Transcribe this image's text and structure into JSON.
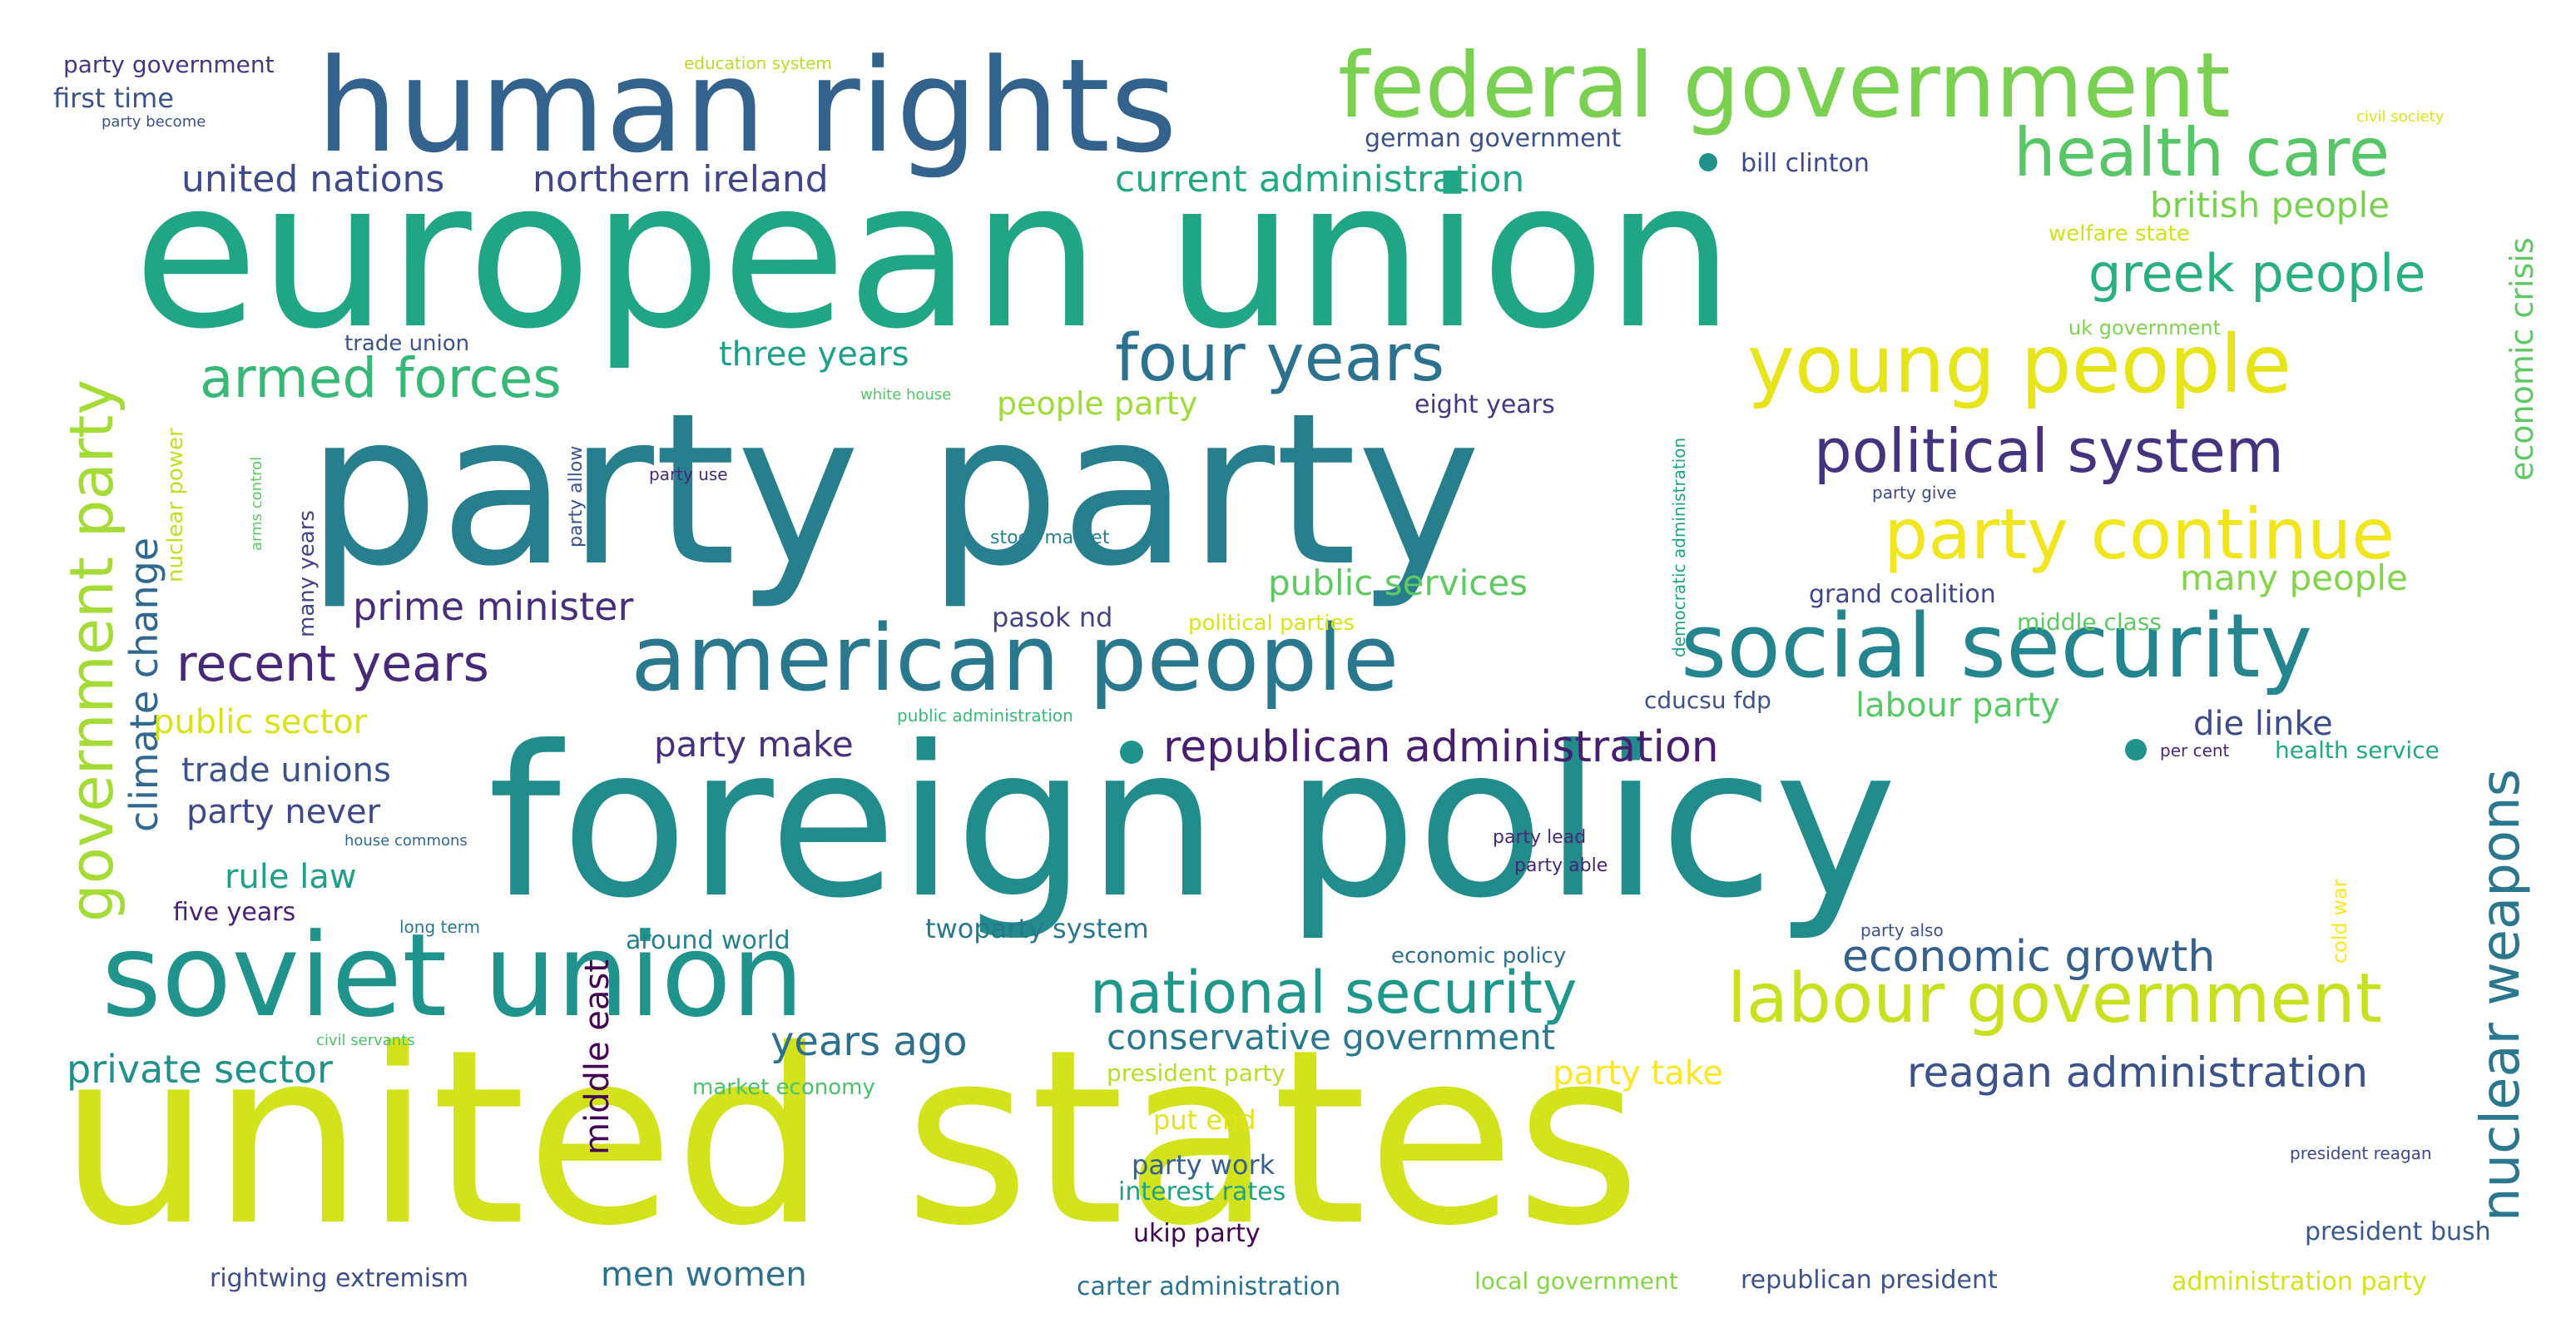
{
  "words": [
    {
      "text": "united states",
      "color": "#d2e21b"
    },
    {
      "text": "european union",
      "color": "#21a685"
    },
    {
      "text": "party party",
      "color": "#277f8e"
    },
    {
      "text": "foreign policy",
      "color": "#228c8d"
    },
    {
      "text": "human rights",
      "color": "#33638d"
    },
    {
      "text": "soviet union",
      "color": "#20938c"
    },
    {
      "text": "federal government",
      "color": "#7ad151"
    },
    {
      "text": "american people",
      "color": "#2a788e"
    },
    {
      "text": "social security",
      "color": "#25858e"
    },
    {
      "text": "young people",
      "color": "#e7e419"
    },
    {
      "text": "labour government",
      "color": "#c8e020"
    },
    {
      "text": "health care",
      "color": "#56c667"
    },
    {
      "text": "party continue",
      "color": "#f1e51d"
    },
    {
      "text": "government party",
      "color": "#a5db36"
    },
    {
      "text": "national security",
      "color": "#1f988b"
    },
    {
      "text": "four years",
      "color": "#2c728e"
    },
    {
      "text": "political system",
      "color": "#46337f"
    },
    {
      "text": "nuclear weapons",
      "color": "#2a778e"
    },
    {
      "text": "armed forces",
      "color": "#37b878"
    },
    {
      "text": "greek people",
      "color": "#2ab07f"
    },
    {
      "text": "recent years",
      "color": "#482979"
    },
    {
      "text": "economic growth",
      "color": "#355f8d"
    },
    {
      "text": "reagan administration",
      "color": "#3b528b"
    },
    {
      "text": "republican administration",
      "color": "#481f70"
    },
    {
      "text": "climate change",
      "color": "#31688e"
    },
    {
      "text": "prime minister",
      "color": "#472d7b"
    },
    {
      "text": "private sector",
      "color": "#21918c"
    },
    {
      "text": "years ago",
      "color": "#2d708e"
    },
    {
      "text": "conservative government",
      "color": "#2a788e"
    },
    {
      "text": "british people",
      "color": "#7ad151"
    },
    {
      "text": "united nations",
      "color": "#3e4a89"
    },
    {
      "text": "northern ireland",
      "color": "#404688"
    },
    {
      "text": "current administration",
      "color": "#22a884"
    },
    {
      "text": "public services",
      "color": "#5ec962"
    },
    {
      "text": "many people",
      "color": "#84d44b"
    },
    {
      "text": "party make",
      "color": "#472f7d"
    },
    {
      "text": "die linke",
      "color": "#3e4c8a"
    },
    {
      "text": "labour party",
      "color": "#58c765"
    },
    {
      "text": "public sector",
      "color": "#d8e219"
    },
    {
      "text": "trade unions",
      "color": "#3b528b"
    },
    {
      "text": "party never",
      "color": "#3e4989"
    },
    {
      "text": "rule law",
      "color": "#1f9e89"
    },
    {
      "text": "middle east",
      "color": "#440154"
    },
    {
      "text": "party take",
      "color": "#fde725"
    },
    {
      "text": "men women",
      "color": "#2d708e"
    },
    {
      "text": "economic crisis",
      "color": "#5ec962"
    },
    {
      "text": "three years",
      "color": "#1fa088"
    },
    {
      "text": "people party",
      "color": "#a0da39"
    },
    {
      "text": "first time",
      "color": "#3b528b"
    },
    {
      "text": "party government",
      "color": "#453781"
    },
    {
      "text": "german government",
      "color": "#3b528b"
    },
    {
      "text": "bill clinton",
      "color": "#3e4a89"
    },
    {
      "text": "twoparty system",
      "color": "#2a788e"
    },
    {
      "text": "grand coalition",
      "color": "#3f4788"
    },
    {
      "text": "pasok nd",
      "color": "#414487"
    },
    {
      "text": "eight years",
      "color": "#443a83"
    },
    {
      "text": "five years",
      "color": "#482173"
    },
    {
      "text": "around world",
      "color": "#26818e"
    },
    {
      "text": "middle class",
      "color": "#5ec962"
    },
    {
      "text": "health service",
      "color": "#22a884"
    },
    {
      "text": "cducsu fdp",
      "color": "#3b528b"
    },
    {
      "text": "put end",
      "color": "#e2e418"
    },
    {
      "text": "party work",
      "color": "#355f8d"
    },
    {
      "text": "interest rates",
      "color": "#1fa188"
    },
    {
      "text": "ukip party",
      "color": "#440154"
    },
    {
      "text": "president bush",
      "color": "#38598c"
    },
    {
      "text": "president party",
      "color": "#b5de2b"
    },
    {
      "text": "carter administration",
      "color": "#2c718e"
    },
    {
      "text": "local government",
      "color": "#86d549"
    },
    {
      "text": "republican president",
      "color": "#3b528b"
    },
    {
      "text": "administration party",
      "color": "#d5e21a"
    },
    {
      "text": "rightwing extremism",
      "color": "#3d4e8a"
    },
    {
      "text": "economic policy",
      "color": "#2e6e8e"
    },
    {
      "text": "many years",
      "color": "#414487"
    },
    {
      "text": "nuclear power",
      "color": "#c2df23"
    },
    {
      "text": "cold war",
      "color": "#fde725"
    },
    {
      "text": "trade union",
      "color": "#3b528b"
    },
    {
      "text": "market economy",
      "color": "#4ac16d"
    },
    {
      "text": "political parties",
      "color": "#dae319"
    },
    {
      "text": "welfare state",
      "color": "#d0e11c"
    },
    {
      "text": "uk government",
      "color": "#7fd34e"
    },
    {
      "text": "education system",
      "color": "#b8de29"
    },
    {
      "text": "civil society",
      "color": "#dde318"
    },
    {
      "text": "party become",
      "color": "#3b528b"
    },
    {
      "text": "party allow",
      "color": "#3b528b"
    },
    {
      "text": "party use",
      "color": "#482878"
    },
    {
      "text": "white house",
      "color": "#52c569"
    },
    {
      "text": "stock market",
      "color": "#26828e"
    },
    {
      "text": "public administration",
      "color": "#38b977"
    },
    {
      "text": "democratic administration",
      "color": "#1fa188"
    },
    {
      "text": "party give",
      "color": "#3e4989"
    },
    {
      "text": "party lead",
      "color": "#482878"
    },
    {
      "text": "party able",
      "color": "#482475"
    },
    {
      "text": "per cent",
      "color": "#482878"
    },
    {
      "text": "house commons",
      "color": "#31688e"
    },
    {
      "text": "long term",
      "color": "#2a788e"
    },
    {
      "text": "civil servants",
      "color": "#4ac16d"
    },
    {
      "text": "arms control",
      "color": "#5ec962"
    },
    {
      "text": "party also",
      "color": "#3b528b"
    },
    {
      "text": "president reagan",
      "color": "#3e4989"
    }
  ]
}
